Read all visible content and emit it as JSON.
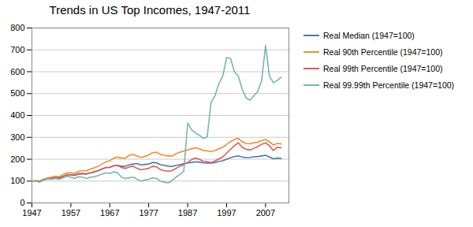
{
  "chart_data": {
    "type": "line",
    "title": "Trends in US Top Incomes, 1947-2011",
    "x": [
      1947,
      1948,
      1949,
      1950,
      1951,
      1952,
      1953,
      1954,
      1955,
      1956,
      1957,
      1958,
      1959,
      1960,
      1961,
      1962,
      1963,
      1964,
      1965,
      1966,
      1967,
      1968,
      1969,
      1970,
      1971,
      1972,
      1973,
      1974,
      1975,
      1976,
      1977,
      1978,
      1979,
      1980,
      1981,
      1982,
      1983,
      1984,
      1985,
      1986,
      1987,
      1988,
      1989,
      1990,
      1991,
      1992,
      1993,
      1994,
      1995,
      1996,
      1997,
      1998,
      1999,
      2000,
      2001,
      2002,
      2003,
      2004,
      2005,
      2006,
      2007,
      2008,
      2009,
      2010,
      2011
    ],
    "series": [
      {
        "name": "Real Median (1947=100)",
        "values": [
          100,
          102,
          100,
          108,
          112,
          114,
          118,
          116,
          122,
          128,
          128,
          125,
          132,
          133,
          133,
          138,
          142,
          148,
          155,
          162,
          163,
          170,
          172,
          168,
          168,
          175,
          178,
          180,
          174,
          176,
          178,
          185,
          184,
          175,
          172,
          168,
          167,
          172,
          175,
          180,
          183,
          185,
          188,
          187,
          183,
          182,
          182,
          185,
          190,
          193,
          200,
          207,
          212,
          215,
          210,
          207,
          208,
          211,
          212,
          215,
          218,
          210,
          202,
          205,
          203
        ]
      },
      {
        "name": "Real 90th Percentile (1947=100)",
        "values": [
          100,
          102,
          100,
          108,
          115,
          118,
          122,
          120,
          130,
          138,
          138,
          135,
          145,
          148,
          148,
          155,
          160,
          168,
          178,
          188,
          193,
          205,
          210,
          205,
          205,
          218,
          222,
          215,
          208,
          213,
          220,
          230,
          232,
          222,
          218,
          215,
          215,
          225,
          232,
          238,
          242,
          248,
          252,
          248,
          240,
          238,
          235,
          240,
          248,
          255,
          268,
          280,
          290,
          295,
          280,
          272,
          270,
          275,
          278,
          285,
          290,
          280,
          265,
          272,
          270
        ]
      },
      {
        "name": "Real 99th Percentile (1947=100)",
        "values": [
          100,
          100,
          98,
          105,
          110,
          112,
          115,
          112,
          120,
          130,
          130,
          128,
          135,
          135,
          132,
          138,
          142,
          148,
          155,
          162,
          162,
          170,
          172,
          162,
          158,
          165,
          168,
          158,
          152,
          155,
          158,
          168,
          165,
          152,
          148,
          145,
          148,
          158,
          168,
          175,
          185,
          198,
          205,
          200,
          190,
          188,
          185,
          192,
          202,
          210,
          228,
          245,
          262,
          275,
          255,
          245,
          242,
          250,
          258,
          268,
          275,
          262,
          240,
          255,
          252
        ]
      },
      {
        "name": "Real 99.99th Percentile (1947=100)",
        "values": [
          100,
          100,
          95,
          105,
          110,
          108,
          112,
          108,
          115,
          122,
          118,
          112,
          120,
          118,
          112,
          118,
          120,
          125,
          132,
          138,
          135,
          142,
          138,
          118,
          112,
          115,
          118,
          108,
          100,
          105,
          108,
          115,
          112,
          100,
          95,
          92,
          102,
          118,
          130,
          145,
          365,
          335,
          320,
          310,
          295,
          302,
          460,
          490,
          545,
          580,
          665,
          660,
          600,
          580,
          520,
          480,
          470,
          490,
          510,
          560,
          720,
          580,
          550,
          560,
          575
        ]
      }
    ],
    "xlim": [
      1947,
      2013
    ],
    "xticks": [
      1947,
      1957,
      1967,
      1977,
      1987,
      1997,
      2007
    ],
    "ylim": [
      0,
      800
    ],
    "yticks": [
      0,
      100,
      200,
      300,
      400,
      500,
      600,
      700,
      800
    ],
    "grid": "y",
    "legend": "right"
  }
}
